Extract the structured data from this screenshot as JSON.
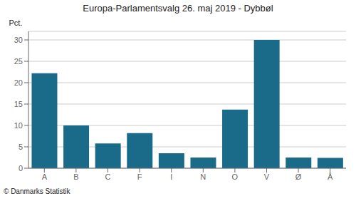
{
  "chart_data": {
    "type": "bar",
    "title": "Europa-Parlamentsvalg 26. maj 2019 - Dybbøl",
    "categories": [
      "A",
      "B",
      "C",
      "F",
      "I",
      "N",
      "O",
      "V",
      "Ø",
      "Å"
    ],
    "values": [
      22.2,
      10.0,
      5.8,
      8.2,
      3.5,
      2.5,
      13.7,
      30.0,
      2.5,
      2.4
    ],
    "color": "#1a6b8a",
    "ylim": [
      0,
      32
    ],
    "yticks": [
      0,
      5,
      10,
      15,
      20,
      25,
      30
    ],
    "ylabel": "Pct.",
    "footer": "© Danmarks Statistik",
    "grid": true
  }
}
